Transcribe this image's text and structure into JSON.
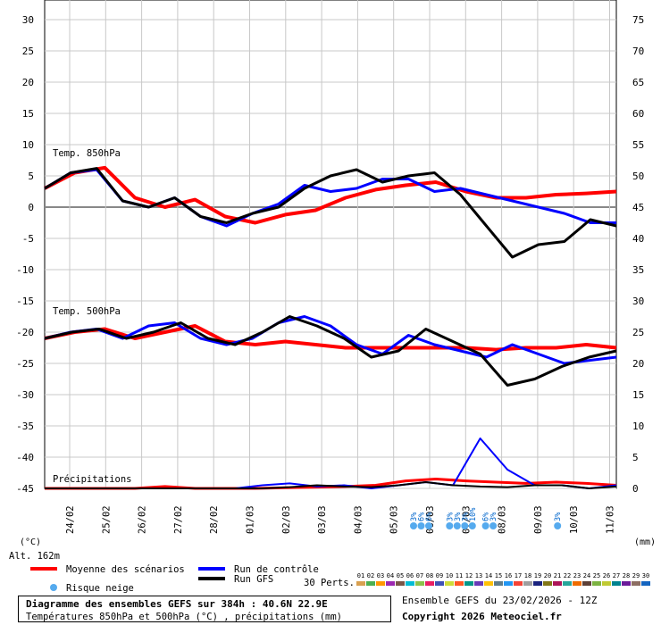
{
  "chart_data": {
    "type": "line",
    "left_axis": {
      "ticks": [
        30,
        25,
        20,
        15,
        10,
        5,
        0,
        -5,
        -10,
        -15,
        -20,
        -25,
        -30,
        -35,
        -40,
        -45
      ],
      "unit_label": "(°C)"
    },
    "right_axis": {
      "ticks": [
        75,
        70,
        65,
        60,
        55,
        50,
        45,
        40,
        35,
        30,
        25,
        20,
        15,
        10,
        5,
        0
      ],
      "unit_label": "(mm)"
    },
    "x_dates": [
      "24/02",
      "25/02",
      "26/02",
      "27/02",
      "28/02",
      "01/03",
      "02/03",
      "03/03",
      "04/03",
      "05/03",
      "06/03",
      "07/03",
      "08/03",
      "09/03",
      "10/03",
      "11/03"
    ],
    "altitude_label": "Alt. 162m",
    "panels": [
      {
        "label": "Temp. 850hPa",
        "variable": "t850"
      },
      {
        "label": "Temp. 500hPa",
        "variable": "t500"
      },
      {
        "label": "Précipitations",
        "variable": "precip"
      }
    ],
    "series": [
      {
        "name": "Moyenne des scénarios",
        "color": "#ff0000",
        "t850": [
          3,
          5.5,
          6.3,
          1.5,
          0,
          1.2,
          -1.5,
          -2.5,
          -1.2,
          -0.5,
          1.5,
          2.8,
          3.5,
          4,
          2.5,
          1.5,
          1.5,
          2,
          2.2,
          2.5
        ],
        "t500": [
          -21,
          -20,
          -19.5,
          -21,
          -20,
          -19,
          -21.5,
          -22,
          -21.5,
          -22,
          -22.5,
          -22.5,
          -22.5,
          -22.5,
          -22.5,
          -22.8,
          -22.5,
          -22.5,
          -22,
          -22.5
        ],
        "precip": [
          0,
          0,
          0,
          0,
          0.3,
          0,
          0,
          0,
          0.1,
          0.2,
          0.3,
          0.5,
          1.2,
          1.5,
          1.2,
          1,
          0.8,
          1,
          0.8,
          0.5
        ]
      },
      {
        "name": "Run de contrôle",
        "color": "#0000ff",
        "t850": [
          3,
          5.5,
          6,
          1,
          0,
          1.5,
          -1.5,
          -3,
          -1,
          0.5,
          3.5,
          2.5,
          3,
          4.5,
          4.5,
          2.5,
          3,
          2,
          1,
          0,
          -1,
          -2.5,
          -2.5
        ],
        "t500": [
          -21,
          -20,
          -19.5,
          -21,
          -19,
          -18.5,
          -21,
          -22,
          -21,
          -18.5,
          -17.5,
          -19,
          -22,
          -23.5,
          -20.5,
          -22,
          -23,
          -24,
          -22,
          -23.5,
          -25,
          -24.5,
          -24
        ],
        "precip": [
          0,
          0,
          0,
          0,
          0,
          0,
          0,
          0,
          0.5,
          0.8,
          0.3,
          0.5,
          0,
          0.5,
          1,
          0.5,
          8,
          3,
          0.5,
          0.5,
          0,
          0.5
        ]
      },
      {
        "name": "Run GFS",
        "color": "#000000",
        "t850": [
          3,
          5.5,
          6.2,
          1,
          0,
          1.5,
          -1.5,
          -2.5,
          -1,
          0,
          3,
          5,
          6,
          4,
          5,
          5.5,
          2,
          -3,
          -8,
          -6,
          -5.5,
          -2,
          -3
        ],
        "t500": [
          -21,
          -20,
          -19.5,
          -21,
          -20,
          -18.5,
          -21,
          -22,
          -20,
          -17.5,
          -19,
          -21,
          -24,
          -23,
          -19.5,
          -21.5,
          -23.5,
          -28.5,
          -27.5,
          -25.5,
          -24,
          -23
        ],
        "precip": [
          0,
          0,
          0,
          0,
          0,
          0,
          0,
          0,
          0,
          0.2,
          0.5,
          0.3,
          0.2,
          0.5,
          1,
          0.5,
          0.3,
          0.2,
          0.5,
          0.5,
          0,
          0.3
        ]
      }
    ],
    "snow_risk": [
      {
        "date": "06/03",
        "label": "3%"
      },
      {
        "date": "06/03",
        "label": "6%"
      },
      {
        "date": "06/03",
        "label": "6%"
      },
      {
        "date": "07/03",
        "label": "3%"
      },
      {
        "date": "07/03",
        "label": "3%"
      },
      {
        "date": "07/03",
        "label": "3%"
      },
      {
        "date": "07/03",
        "label": "10%"
      },
      {
        "date": "08/03",
        "label": "6%"
      },
      {
        "date": "08/03",
        "label": "3%"
      },
      {
        "date": "10/03",
        "label": "3%"
      }
    ],
    "legend": {
      "items": [
        "Moyenne des scénarios",
        "Run de contrôle",
        "Run GFS"
      ],
      "snow_label": "Risque neige",
      "perts_label": "30 Perts.",
      "perts_numbers": [
        "01",
        "02",
        "03",
        "04",
        "05",
        "06",
        "07",
        "08",
        "09",
        "10",
        "11",
        "12",
        "13",
        "14",
        "15",
        "16",
        "17",
        "18",
        "19",
        "20",
        "21",
        "22",
        "23",
        "24",
        "25",
        "26",
        "27",
        "28",
        "29",
        "30"
      ],
      "perts_colors": [
        "#d8a050",
        "#4caf50",
        "#ff9800",
        "#9c27b0",
        "#795548",
        "#00bcd4",
        "#8bc34a",
        "#e91e63",
        "#3f51b5",
        "#cddc39",
        "#ff5722",
        "#009688",
        "#673ab7",
        "#ffc107",
        "#607d8b",
        "#2196f3",
        "#f44336",
        "#9e9e9e",
        "#1a237e",
        "#827717",
        "#ad1457",
        "#26a69a",
        "#ef6c00",
        "#5d4037",
        "#7cb342",
        "#c0ca33",
        "#00838f",
        "#6a1b9a",
        "#8d6e63",
        "#1565c0"
      ]
    }
  },
  "footer": {
    "title": "Diagramme des ensembles GEFS sur 384h : 40.6N 22.9E",
    "subtitle": "Températures 850hPa et 500hPa (°C) , précipitations (mm)",
    "ensemble": "Ensemble GEFS du 23/02/2026 - 12Z",
    "copyright": "Copyright 2026 Meteociel.fr"
  }
}
